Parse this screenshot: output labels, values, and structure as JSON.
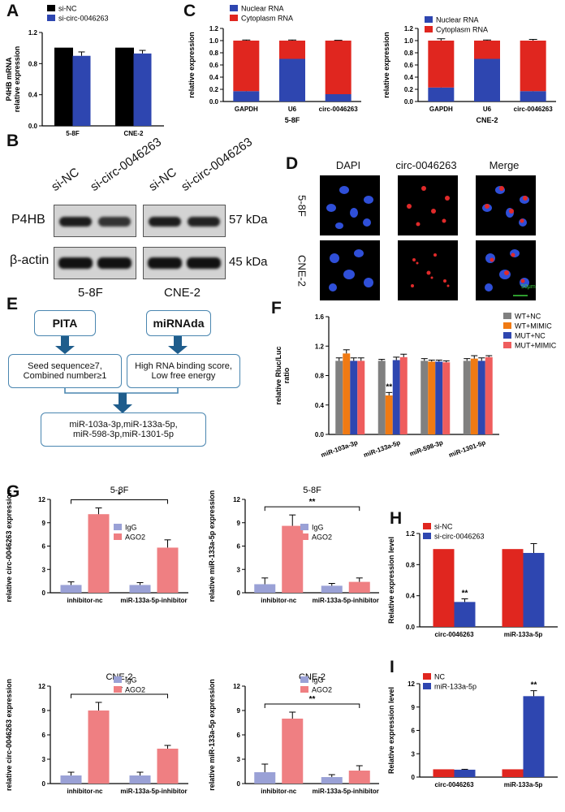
{
  "panels": {
    "A": "A",
    "B": "B",
    "C": "C",
    "D": "D",
    "E": "E",
    "F": "F",
    "G": "G",
    "H": "H",
    "I": "I"
  },
  "blot": {
    "lanes": [
      "si-NC",
      "si-circ-0046263",
      "si-NC",
      "si-circ-0046263"
    ],
    "rows": [
      "P4HB",
      "β-actin"
    ],
    "kda": [
      "57 kDa",
      "45 kDa"
    ],
    "cells": [
      "5-8F",
      "CNE-2"
    ]
  },
  "micro": {
    "cols": [
      "DAPI",
      "circ-0046263",
      "Merge"
    ],
    "rows": [
      "5-8F",
      "CNE-2"
    ],
    "scale": "50μm"
  },
  "flow": {
    "pita": "PITA",
    "mirnada": "miRNAda",
    "left_line1": "Seed sequence≥7,",
    "left_line2": "Combined number≥1",
    "right_line1": "High RNA binding score,",
    "right_line2": "Low free energy",
    "result_line1": "miR-103a-3p,miR-133a-5p,",
    "result_line2": "miR-598-3p,miR-1301-5p"
  },
  "colors": {
    "black": "#000000",
    "blue": "#2e46b0",
    "red": "#e0261f",
    "gray": "#808080",
    "orange": "#f07a13",
    "salmon": "#ef5d5d",
    "lilac": "#9aa1d6",
    "pink": "#ef7f82"
  },
  "chart_data": [
    {
      "id": "A",
      "type": "bar",
      "categories": [
        "5-8F",
        "CNE-2"
      ],
      "series": [
        {
          "name": "si-NC",
          "values": [
            1.0,
            1.0
          ],
          "errors": [
            0,
            0
          ],
          "color": "#000000"
        },
        {
          "name": "si-circ-0046263",
          "values": [
            0.9,
            0.93
          ],
          "errors": [
            0.05,
            0.04
          ],
          "color": "#2e46b0"
        }
      ],
      "ylabel": "P4HB mRNA\nrelative expression",
      "ylim": [
        0,
        1.2
      ],
      "yticks": [
        "0.0",
        "0.4",
        "0.8",
        "1.2"
      ],
      "legend": "top-left"
    },
    {
      "id": "C1",
      "type": "bar",
      "stacked": true,
      "categories": [
        "GAPDH",
        "U6",
        "circ-0046263"
      ],
      "series": [
        {
          "name": "Nuclear RNA",
          "values": [
            0.17,
            0.7,
            0.12
          ],
          "errors": [
            0.01,
            0.01,
            0.03
          ],
          "color": "#2e46b0"
        },
        {
          "name": "Cytoplasm RNA",
          "values": [
            0.83,
            0.3,
            0.88
          ],
          "errors": [
            0.01,
            0.01,
            0.005
          ],
          "color": "#e0261f"
        }
      ],
      "xlabel": "5-8F",
      "ylabel": "relative expression",
      "ylim": [
        0,
        1.2
      ],
      "yticks": [
        "0.0",
        "0.2",
        "0.4",
        "0.6",
        "0.8",
        "1.0",
        "1.2"
      ],
      "legend": "top-left"
    },
    {
      "id": "C2",
      "type": "bar",
      "stacked": true,
      "categories": [
        "GAPDH",
        "U6",
        "circ-0046263"
      ],
      "series": [
        {
          "name": "Nuclear RNA",
          "values": [
            0.23,
            0.7,
            0.17
          ],
          "errors": [
            0.03,
            0.01,
            0.02
          ],
          "color": "#2e46b0"
        },
        {
          "name": "Cytoplasm RNA",
          "values": [
            0.77,
            0.3,
            0.83
          ],
          "errors": [
            0.03,
            0.01,
            0.02
          ],
          "color": "#e0261f"
        }
      ],
      "xlabel": "CNE-2",
      "ylabel": "relative expression",
      "ylim": [
        0,
        1.2
      ],
      "yticks": [
        "0.0",
        "0.2",
        "0.4",
        "0.6",
        "0.8",
        "1.0",
        "1.2"
      ],
      "legend": "top-left"
    },
    {
      "id": "F",
      "type": "bar",
      "categories": [
        "miR-103a-3p",
        "miR-133a-5p",
        "miR-598-3p",
        "miR-1301-5p"
      ],
      "series": [
        {
          "name": "WT+NC",
          "values": [
            1.0,
            1.0,
            1.0,
            1.0
          ],
          "errors": [
            0.04,
            0.02,
            0.03,
            0.03
          ],
          "color": "#808080"
        },
        {
          "name": "WT+MIMIC",
          "values": [
            1.1,
            0.53,
            0.99,
            1.03
          ],
          "errors": [
            0.05,
            0.04,
            0.02,
            0.04
          ],
          "color": "#f07a13"
        },
        {
          "name": "MUT+NC",
          "values": [
            1.0,
            1.01,
            0.99,
            1.0
          ],
          "errors": [
            0.04,
            0.04,
            0.02,
            0.04
          ],
          "color": "#2e46b0"
        },
        {
          "name": "MUT+MIMIC",
          "values": [
            1.0,
            1.05,
            0.98,
            1.05
          ],
          "errors": [
            0.04,
            0.04,
            0.02,
            0.02
          ],
          "color": "#ef5d5d"
        }
      ],
      "ylabel": "relative Rluc/Luc\nratio",
      "ylim": [
        0,
        1.6
      ],
      "yticks": [
        "0.0",
        "0.4",
        "0.8",
        "1.2",
        "1.6"
      ],
      "annotations": [
        {
          "text": "**",
          "category": 1,
          "series": 1
        }
      ],
      "legend": "right"
    },
    {
      "id": "G1",
      "type": "bar",
      "title": "5-8F",
      "categories": [
        "inhibitor-nc",
        "miR-133a-5p-inhibitor"
      ],
      "series": [
        {
          "name": "IgG",
          "values": [
            1.0,
            1.0
          ],
          "errors": [
            0.4,
            0.3
          ],
          "color": "#9aa1d6"
        },
        {
          "name": "AGO2",
          "values": [
            10.1,
            5.8
          ],
          "errors": [
            0.8,
            1.0
          ],
          "color": "#ef7f82"
        }
      ],
      "ylabel": "relative circ-0046263 expression",
      "ylim": [
        0,
        12
      ],
      "yticks": [
        "0",
        "3",
        "6",
        "9",
        "12"
      ],
      "bracket": "*",
      "legend": "top-right"
    },
    {
      "id": "G2",
      "type": "bar",
      "title": "5-8F",
      "categories": [
        "inhibitor-nc",
        "miR-133a-5p-inhibitor"
      ],
      "series": [
        {
          "name": "IgG",
          "values": [
            1.1,
            0.9
          ],
          "errors": [
            0.8,
            0.3
          ],
          "color": "#9aa1d6"
        },
        {
          "name": "AGO2",
          "values": [
            8.6,
            1.4
          ],
          "errors": [
            1.4,
            0.5
          ],
          "color": "#ef7f82"
        }
      ],
      "ylabel": "relative miR-133a-5p expression",
      "ylim": [
        0,
        12
      ],
      "yticks": [
        "0",
        "3",
        "6",
        "9",
        "12"
      ],
      "bracket": "**",
      "legend": "top-right"
    },
    {
      "id": "G3",
      "type": "bar",
      "title": "CNE-2",
      "categories": [
        "inhibitor-nc",
        "miR-133a-5p-inhibitor"
      ],
      "series": [
        {
          "name": "IgG",
          "values": [
            1.0,
            1.0
          ],
          "errors": [
            0.4,
            0.4
          ],
          "color": "#9aa1d6"
        },
        {
          "name": "AGO2",
          "values": [
            9.0,
            4.3
          ],
          "errors": [
            1.0,
            0.4
          ],
          "color": "#ef7f82"
        }
      ],
      "ylabel": "relative circ-0046263 expression",
      "ylim": [
        0,
        12
      ],
      "yticks": [
        "0",
        "3",
        "6",
        "9",
        "12"
      ],
      "bracket": "**",
      "legend": "top-right"
    },
    {
      "id": "G4",
      "type": "bar",
      "title": "CNE-2",
      "categories": [
        "inhibitor-nc",
        "miR-133a-5p-inhibitor"
      ],
      "series": [
        {
          "name": "IgG",
          "values": [
            1.4,
            0.8
          ],
          "errors": [
            1.0,
            0.3
          ],
          "color": "#9aa1d6"
        },
        {
          "name": "AGO2",
          "values": [
            8.0,
            1.6
          ],
          "errors": [
            0.8,
            0.6
          ],
          "color": "#ef7f82"
        }
      ],
      "ylabel": "relative miR-133a-5p expression",
      "ylim": [
        0,
        12
      ],
      "yticks": [
        "0",
        "3",
        "6",
        "9",
        "12"
      ],
      "bracket": "**",
      "legend": "top-right"
    },
    {
      "id": "H",
      "type": "bar",
      "categories": [
        "circ-0046263",
        "miR-133a-5p"
      ],
      "series": [
        {
          "name": "si-NC",
          "values": [
            1.0,
            1.0
          ],
          "errors": [
            0,
            0
          ],
          "color": "#e0261f"
        },
        {
          "name": "si-circ-0046263",
          "values": [
            0.32,
            0.95
          ],
          "errors": [
            0.04,
            0.12
          ],
          "color": "#2e46b0"
        }
      ],
      "ylabel": "Relative expression level",
      "ylim": [
        0,
        1.2
      ],
      "yticks": [
        "0.0",
        "0.4",
        "0.8",
        "1.2"
      ],
      "annotations": [
        {
          "text": "**",
          "category": 0,
          "series": 1
        }
      ],
      "legend": "top-left"
    },
    {
      "id": "I",
      "type": "bar",
      "categories": [
        "circ-0046263",
        "miR-133a-5p"
      ],
      "series": [
        {
          "name": "NC",
          "values": [
            1.0,
            1.0
          ],
          "errors": [
            0,
            0
          ],
          "color": "#e0261f"
        },
        {
          "name": "miR-133a-5p",
          "values": [
            0.95,
            10.4
          ],
          "errors": [
            0.05,
            0.7
          ],
          "color": "#2e46b0"
        }
      ],
      "ylabel": "Relative expression level",
      "ylim": [
        0,
        12
      ],
      "yticks": [
        "0",
        "3",
        "6",
        "9",
        "12"
      ],
      "annotations": [
        {
          "text": "**",
          "category": 1,
          "series": 1
        }
      ],
      "legend": "top-left"
    }
  ]
}
